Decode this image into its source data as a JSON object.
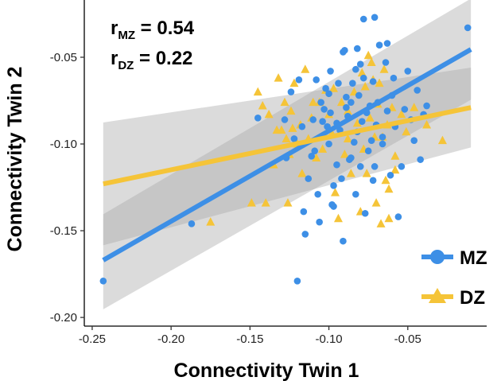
{
  "chart_data": {
    "type": "scatter",
    "xlabel": "Connectivity Twin 1",
    "ylabel": "Connectivity Twin 2",
    "xlim": [
      -0.255,
      0.0
    ],
    "ylim": [
      -0.205,
      -0.017
    ],
    "xticks": [
      -0.25,
      -0.2,
      -0.15,
      -0.1,
      -0.05
    ],
    "xtick_labels": [
      "-0.25",
      "-0.20",
      "-0.15",
      "-0.10",
      "-0.05"
    ],
    "yticks": [
      -0.2,
      -0.15,
      -0.1,
      -0.05
    ],
    "ytick_labels": [
      "-0.20",
      "-0.15",
      "-0.10",
      "-0.05"
    ],
    "correlations": [
      {
        "r": "r",
        "sub": "MZ",
        "text": " = 0.54"
      },
      {
        "r": "r",
        "sub": "DZ",
        "text": " = 0.22"
      }
    ],
    "series": [
      {
        "name": "MZ",
        "marker": "circle",
        "color": "#3d8fe6",
        "fit": {
          "x": [
            -0.243,
            -0.01
          ],
          "y": [
            -0.167,
            -0.0455
          ]
        },
        "band": {
          "upper": [
            -0.1405,
            -0.0162
          ],
          "lower": [
            -0.1953,
            -0.0745
          ]
        },
        "points": [
          [
            -0.243,
            -0.179
          ],
          [
            -0.187,
            -0.146
          ],
          [
            -0.145,
            -0.085
          ],
          [
            -0.128,
            -0.086
          ],
          [
            -0.12,
            -0.179
          ],
          [
            -0.119,
            -0.063
          ],
          [
            -0.117,
            -0.09
          ],
          [
            -0.115,
            -0.152
          ],
          [
            -0.11,
            -0.086
          ],
          [
            -0.108,
            -0.063
          ],
          [
            -0.106,
            -0.145
          ],
          [
            -0.105,
            -0.076
          ],
          [
            -0.103,
            -0.08
          ],
          [
            -0.102,
            -0.068
          ],
          [
            -0.101,
            -0.09
          ],
          [
            -0.1,
            -0.1
          ],
          [
            -0.1,
            -0.071
          ],
          [
            -0.099,
            -0.082
          ],
          [
            -0.098,
            -0.135
          ],
          [
            -0.097,
            -0.124
          ],
          [
            -0.095,
            -0.088
          ],
          [
            -0.094,
            -0.065
          ],
          [
            -0.093,
            -0.092
          ],
          [
            -0.092,
            -0.12
          ],
          [
            -0.091,
            -0.156
          ],
          [
            -0.09,
            -0.046
          ],
          [
            -0.089,
            -0.073
          ],
          [
            -0.088,
            -0.084
          ],
          [
            -0.087,
            -0.109
          ],
          [
            -0.086,
            -0.076
          ],
          [
            -0.085,
            -0.065
          ],
          [
            -0.084,
            -0.099
          ],
          [
            -0.083,
            -0.129
          ],
          [
            -0.082,
            -0.093
          ],
          [
            -0.081,
            -0.072
          ],
          [
            -0.08,
            -0.054
          ],
          [
            -0.08,
            -0.113
          ],
          [
            -0.079,
            -0.087
          ],
          [
            -0.078,
            -0.062
          ],
          [
            -0.077,
            -0.14
          ],
          [
            -0.076,
            -0.082
          ],
          [
            -0.075,
            -0.104
          ],
          [
            -0.074,
            -0.078
          ],
          [
            -0.073,
            -0.098
          ],
          [
            -0.072,
            -0.064
          ],
          [
            -0.072,
            -0.121
          ],
          [
            -0.071,
            -0.027
          ],
          [
            -0.07,
            -0.089
          ],
          [
            -0.069,
            -0.076
          ],
          [
            -0.068,
            -0.043
          ],
          [
            -0.066,
            -0.096
          ],
          [
            -0.064,
            -0.053
          ],
          [
            -0.063,
            -0.081
          ],
          [
            -0.061,
            -0.118
          ],
          [
            -0.06,
            -0.072
          ],
          [
            -0.058,
            -0.09
          ],
          [
            -0.056,
            -0.142
          ],
          [
            -0.054,
            -0.113
          ],
          [
            -0.052,
            -0.08
          ],
          [
            -0.05,
            -0.058
          ],
          [
            -0.048,
            -0.086
          ],
          [
            -0.046,
            -0.098
          ],
          [
            -0.044,
            -0.069
          ],
          [
            -0.042,
            -0.109
          ],
          [
            -0.04,
            -0.083
          ],
          [
            -0.038,
            -0.078
          ],
          [
            -0.012,
            -0.033
          ],
          [
            -0.124,
            -0.07
          ],
          [
            -0.113,
            -0.12
          ],
          [
            -0.109,
            -0.104
          ],
          [
            -0.107,
            -0.129
          ],
          [
            -0.095,
            -0.112
          ],
          [
            -0.078,
            -0.028
          ],
          [
            -0.066,
            -0.1
          ],
          [
            -0.063,
            -0.042
          ],
          [
            -0.059,
            -0.062
          ],
          [
            -0.097,
            -0.136
          ],
          [
            -0.086,
            -0.108
          ],
          [
            -0.082,
            -0.045
          ],
          [
            -0.071,
            -0.113
          ],
          [
            -0.116,
            -0.139
          ],
          [
            -0.083,
            -0.057
          ],
          [
            -0.091,
            -0.047
          ],
          [
            -0.089,
            -0.079
          ],
          [
            -0.099,
            -0.058
          ],
          [
            -0.104,
            -0.087
          ],
          [
            -0.111,
            -0.107
          ],
          [
            -0.122,
            -0.097
          ],
          [
            -0.127,
            -0.108
          ]
        ]
      },
      {
        "name": "DZ",
        "marker": "triangle",
        "color": "#f5c438",
        "fit": {
          "x": [
            -0.243,
            -0.01
          ],
          "y": [
            -0.123,
            -0.079
          ]
        },
        "band": {
          "upper": [
            -0.0876,
            -0.056
          ],
          "lower": [
            -0.1584,
            -0.102
          ]
        },
        "points": [
          [
            -0.175,
            -0.145
          ],
          [
            -0.149,
            -0.134
          ],
          [
            -0.145,
            -0.07
          ],
          [
            -0.142,
            -0.078
          ],
          [
            -0.14,
            -0.134
          ],
          [
            -0.138,
            -0.083
          ],
          [
            -0.135,
            -0.112
          ],
          [
            -0.133,
            -0.092
          ],
          [
            -0.132,
            -0.062
          ],
          [
            -0.13,
            -0.092
          ],
          [
            -0.128,
            -0.076
          ],
          [
            -0.127,
            -0.097
          ],
          [
            -0.126,
            -0.134
          ],
          [
            -0.125,
            -0.106
          ],
          [
            -0.124,
            -0.081
          ],
          [
            -0.123,
            -0.091
          ],
          [
            -0.122,
            -0.065
          ],
          [
            -0.12,
            -0.1
          ],
          [
            -0.118,
            -0.089
          ],
          [
            -0.117,
            -0.117
          ],
          [
            -0.115,
            -0.057
          ],
          [
            -0.113,
            -0.097
          ],
          [
            -0.111,
            -0.085
          ],
          [
            -0.108,
            -0.108
          ],
          [
            -0.106,
            -0.076
          ],
          [
            -0.104,
            -0.103
          ],
          [
            -0.102,
            -0.069
          ],
          [
            -0.1,
            -0.083
          ],
          [
            -0.098,
            -0.094
          ],
          [
            -0.096,
            -0.128
          ],
          [
            -0.094,
            -0.143
          ],
          [
            -0.092,
            -0.076
          ],
          [
            -0.09,
            -0.106
          ],
          [
            -0.088,
            -0.097
          ],
          [
            -0.086,
            -0.117
          ],
          [
            -0.084,
            -0.07
          ],
          [
            -0.082,
            -0.088
          ],
          [
            -0.08,
            -0.139
          ],
          [
            -0.078,
            -0.103
          ],
          [
            -0.077,
            -0.067
          ],
          [
            -0.076,
            -0.117
          ],
          [
            -0.075,
            -0.049
          ],
          [
            -0.074,
            -0.085
          ],
          [
            -0.072,
            -0.063
          ],
          [
            -0.071,
            -0.096
          ],
          [
            -0.07,
            -0.134
          ],
          [
            -0.069,
            -0.077
          ],
          [
            -0.068,
            -0.065
          ],
          [
            -0.066,
            -0.096
          ],
          [
            -0.064,
            -0.121
          ],
          [
            -0.063,
            -0.089
          ],
          [
            -0.062,
            -0.126
          ],
          [
            -0.06,
            -0.079
          ],
          [
            -0.058,
            -0.115
          ],
          [
            -0.054,
            -0.083
          ],
          [
            -0.051,
            -0.093
          ],
          [
            -0.046,
            -0.079
          ],
          [
            -0.038,
            -0.089
          ],
          [
            -0.028,
            -0.098
          ],
          [
            -0.11,
            -0.076
          ],
          [
            -0.097,
            -0.068
          ],
          [
            -0.088,
            -0.081
          ],
          [
            -0.079,
            -0.059
          ],
          [
            -0.073,
            -0.053
          ],
          [
            -0.067,
            -0.146
          ],
          [
            -0.065,
            -0.057
          ],
          [
            -0.058,
            -0.107
          ],
          [
            -0.062,
            -0.143
          ]
        ]
      }
    ]
  }
}
